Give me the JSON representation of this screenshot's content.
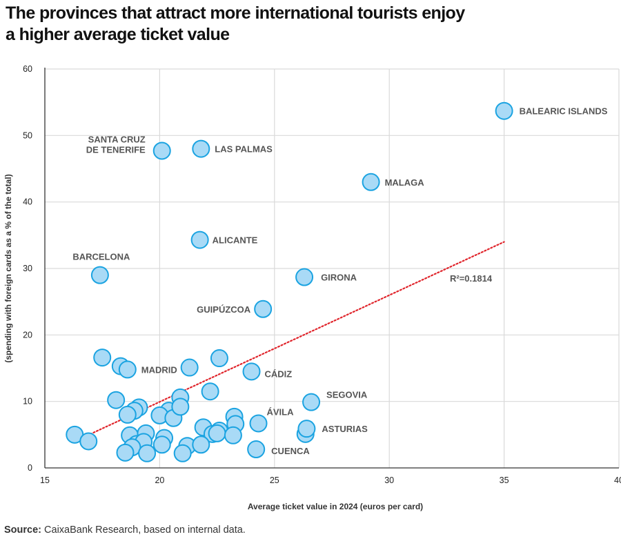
{
  "title_lines": [
    "The provinces that attract more international tourists enjoy",
    "a higher average ticket value"
  ],
  "source": {
    "label": "Source:",
    "text": " CaixaBank Research, based on internal data."
  },
  "chart_data": {
    "type": "scatter",
    "xlabel": "Average ticket value in 2024 (euros per card)",
    "ylabel": "(spending with foreign cards as a % of the total)",
    "xlim": [
      15,
      40
    ],
    "ylim": [
      0,
      60
    ],
    "xticks": [
      15,
      20,
      25,
      30,
      35,
      40
    ],
    "yticks": [
      0,
      10,
      20,
      30,
      40,
      50,
      60
    ],
    "colors": {
      "point_fill": "#a9daf6",
      "point_stroke": "#1aa3e1",
      "trend": "#e0242b",
      "grid": "#d9d9d9",
      "axis": "#333333"
    },
    "trendline": {
      "x": [
        16.3,
        35.0
      ],
      "y": [
        4.0,
        34.0
      ],
      "annotation": "R²=0.1814"
    },
    "labeled_points": [
      {
        "name": "BALEARIC ISLANDS",
        "x": 35.0,
        "y": 53.7
      },
      {
        "name": "SANTA CRUZ DE TENERIFE",
        "name_lines": [
          "SANTA CRUZ",
          "DE TENERIFE"
        ],
        "x": 20.1,
        "y": 47.7
      },
      {
        "name": "LAS PALMAS",
        "x": 21.8,
        "y": 48.0
      },
      {
        "name": "MALAGA",
        "x": 29.2,
        "y": 43.0
      },
      {
        "name": "ALICANTE",
        "x": 21.75,
        "y": 34.3
      },
      {
        "name": "BARCELONA",
        "x": 17.4,
        "y": 29.0
      },
      {
        "name": "GIRONA",
        "x": 26.3,
        "y": 28.7
      },
      {
        "name": "GUIPÚZCOA",
        "x": 24.5,
        "y": 23.9
      },
      {
        "name": "MADRID",
        "x": 18.6,
        "y": 14.8
      },
      {
        "name": "CÁDIZ",
        "x": 24.0,
        "y": 14.5
      },
      {
        "name": "SEGOVIA",
        "x": 26.6,
        "y": 9.9
      },
      {
        "name": "ÁVILA",
        "x": 24.3,
        "y": 6.7
      },
      {
        "name": "ASTURIAS",
        "x": 26.4,
        "y": 5.9
      },
      {
        "name": "CUENCA",
        "x": 24.2,
        "y": 2.8
      }
    ],
    "other_points": [
      {
        "x": 17.5,
        "y": 16.6
      },
      {
        "x": 18.3,
        "y": 15.3
      },
      {
        "x": 21.3,
        "y": 15.1
      },
      {
        "x": 22.6,
        "y": 16.5
      },
      {
        "x": 22.2,
        "y": 11.5
      },
      {
        "x": 20.9,
        "y": 10.6
      },
      {
        "x": 18.1,
        "y": 10.2
      },
      {
        "x": 19.1,
        "y": 9.1
      },
      {
        "x": 18.9,
        "y": 8.6
      },
      {
        "x": 18.6,
        "y": 8.0
      },
      {
        "x": 20.4,
        "y": 8.6
      },
      {
        "x": 20.0,
        "y": 7.9
      },
      {
        "x": 20.6,
        "y": 7.5
      },
      {
        "x": 20.9,
        "y": 9.2
      },
      {
        "x": 23.25,
        "y": 7.7
      },
      {
        "x": 23.3,
        "y": 6.6
      },
      {
        "x": 21.9,
        "y": 6.1
      },
      {
        "x": 22.3,
        "y": 5.1
      },
      {
        "x": 22.6,
        "y": 5.6
      },
      {
        "x": 22.5,
        "y": 5.2
      },
      {
        "x": 23.2,
        "y": 4.9
      },
      {
        "x": 26.35,
        "y": 5.1
      },
      {
        "x": 16.3,
        "y": 5.0
      },
      {
        "x": 16.9,
        "y": 4.0
      },
      {
        "x": 18.7,
        "y": 4.9
      },
      {
        "x": 19.4,
        "y": 5.2
      },
      {
        "x": 20.2,
        "y": 4.5
      },
      {
        "x": 19.0,
        "y": 3.6
      },
      {
        "x": 19.3,
        "y": 3.9
      },
      {
        "x": 18.8,
        "y": 3.1
      },
      {
        "x": 20.1,
        "y": 3.5
      },
      {
        "x": 21.2,
        "y": 3.3
      },
      {
        "x": 21.8,
        "y": 3.5
      },
      {
        "x": 18.5,
        "y": 2.3
      },
      {
        "x": 19.45,
        "y": 2.2
      },
      {
        "x": 21.0,
        "y": 2.2
      }
    ]
  }
}
